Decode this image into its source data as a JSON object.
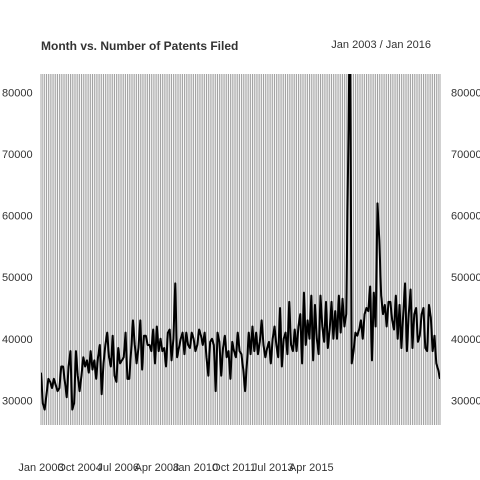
{
  "chart_data": {
    "type": "line",
    "title": "Month vs. Number of Patents Filed",
    "subtitle": "Jan 2003 / Jan 2016",
    "xlabel": "",
    "ylabel": "",
    "x_start": "Jan 2003",
    "x_step": "1 month",
    "x_ticks": [
      "Jan 2003",
      "Oct 2004",
      "Jul 2006",
      "Apr 2008",
      "Jan 2010",
      "Oct 2011",
      "Jul 2013",
      "Apr 2015"
    ],
    "y_ticks": [
      30000,
      40000,
      50000,
      60000,
      70000,
      80000
    ],
    "y_tick_labels_left": [
      "30000",
      "40000",
      "50000",
      "60000",
      "70000",
      "80000"
    ],
    "y_tick_labels_right": [
      "30000",
      "40000",
      "50000",
      "60000",
      "70000",
      "80000"
    ],
    "ylim": [
      26000,
      83000
    ],
    "grid": "vertical lines at every month",
    "line_color": "#000000",
    "grid_color": "#999999",
    "series": [
      {
        "values": [
          34500,
          29500,
          28500,
          31000,
          33500,
          33000,
          32000,
          33500,
          32500,
          31500,
          32000,
          35500,
          35500,
          33000,
          30500,
          35500,
          38000,
          28500,
          29500,
          38000,
          34000,
          31500,
          34000,
          37000,
          35500,
          36500,
          34500,
          38000,
          35000,
          36500,
          33500,
          37000,
          39000,
          31000,
          36000,
          39000,
          41000,
          37000,
          35500,
          40500,
          34000,
          33000,
          38500,
          36000,
          36500,
          37000,
          41000,
          33500,
          33500,
          38000,
          43000,
          39000,
          36000,
          38500,
          43000,
          35000,
          40500,
          40500,
          39000,
          39000,
          38000,
          41500,
          36000,
          42000,
          38000,
          40000,
          38000,
          38500,
          35500,
          41000,
          41500,
          36500,
          40000,
          49000,
          37000,
          38500,
          40000,
          41000,
          37500,
          41000,
          39000,
          38500,
          41000,
          40000,
          38000,
          39000,
          41500,
          40500,
          39000,
          41000,
          37000,
          34000,
          39500,
          40000,
          39000,
          31500,
          41000,
          39500,
          34000,
          38500,
          40500,
          37000,
          38000,
          33500,
          39500,
          38000,
          37000,
          41000,
          38000,
          37500,
          35000,
          31500,
          36000,
          41000,
          37500,
          42000,
          38000,
          41000,
          37500,
          39500,
          43000,
          39000,
          37000,
          38500,
          39500,
          36000,
          40000,
          42000,
          39000,
          37000,
          45000,
          35500,
          40000,
          41000,
          37500,
          46000,
          39000,
          38000,
          41500,
          38000,
          42000,
          44000,
          36000,
          47500,
          39000,
          43000,
          40000,
          47000,
          36500,
          45500,
          40000,
          37500,
          47000,
          42000,
          39500,
          46000,
          38500,
          41500,
          46000,
          40000,
          44500,
          40000,
          47000,
          41000,
          46500,
          42000,
          44000,
          68000,
          93000,
          36000,
          38000,
          41000,
          40500,
          41500,
          43000,
          40000,
          44000,
          45000,
          44500,
          48500,
          36500,
          47500,
          42000,
          62000,
          56000,
          47000,
          44000,
          45500,
          42000,
          46000,
          46000,
          43000,
          41500,
          47000,
          40000,
          45500,
          38500,
          44000,
          49000,
          38000,
          44000,
          48000,
          38500,
          44000,
          45000,
          39500,
          40500,
          44000,
          45000,
          38500,
          38000,
          45500,
          43500,
          38000,
          40500,
          36000,
          35000,
          33500
        ]
      }
    ]
  }
}
